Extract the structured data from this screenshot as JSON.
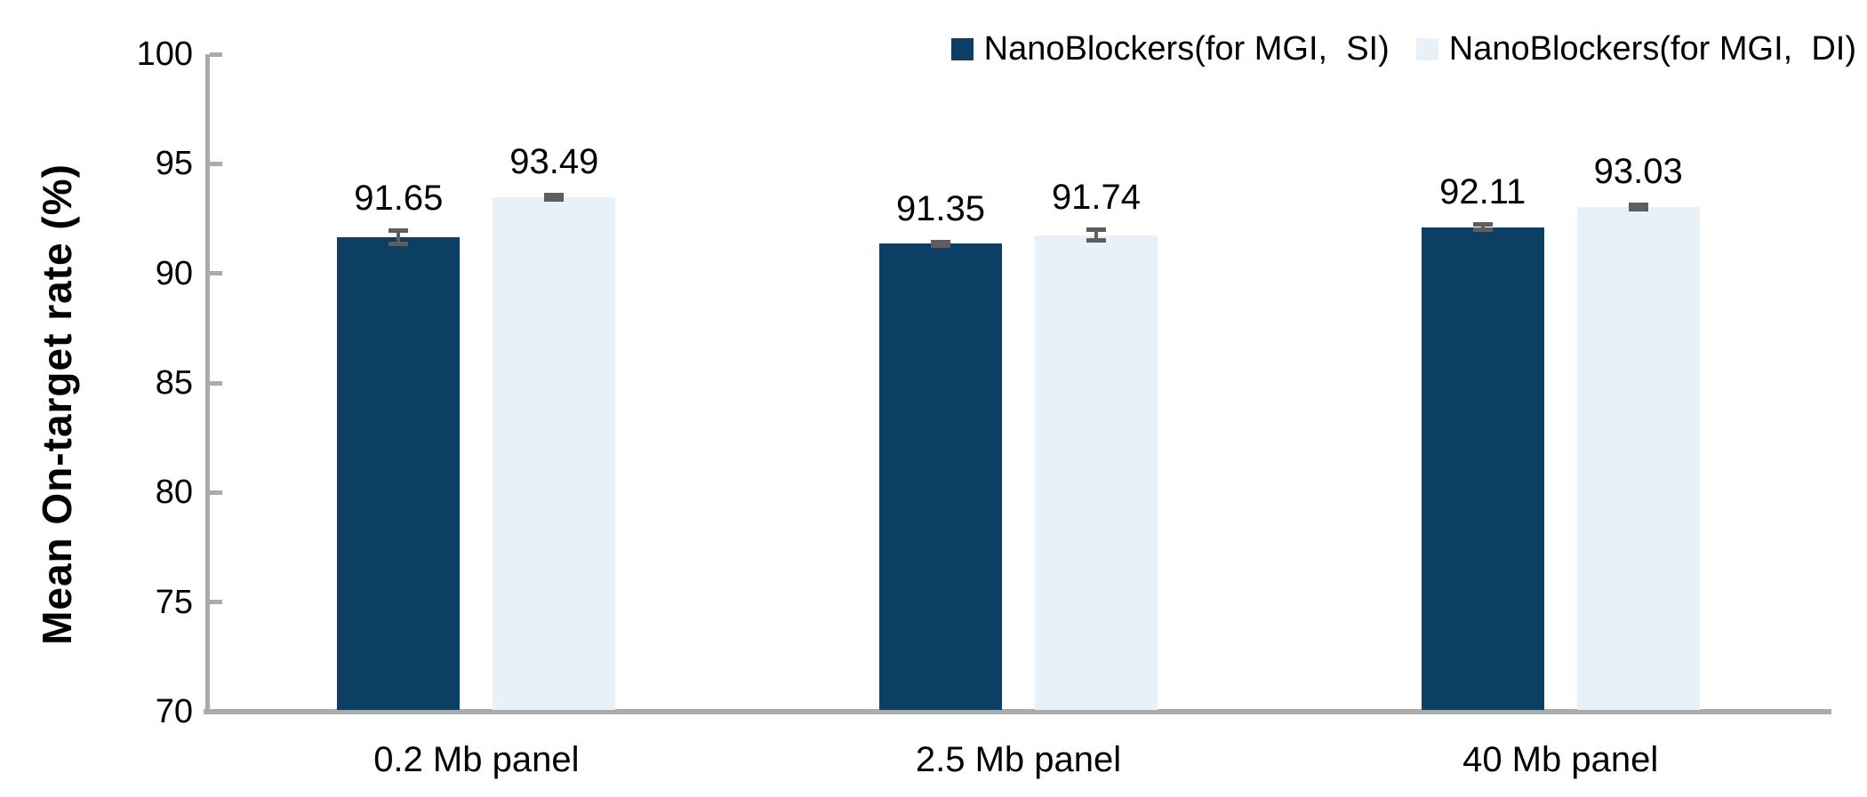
{
  "chart_data": {
    "type": "bar",
    "title": "",
    "ylabel": "Mean On-target rate (%)",
    "xlabel": "",
    "categories": [
      "0.2 Mb panel",
      "2.5 Mb panel",
      "40 Mb panel"
    ],
    "series": [
      {
        "name": "NanoBlockers(for MGI,  SI)",
        "color": "#0D3E64",
        "values": [
          91.65,
          91.35,
          92.11
        ],
        "errors": [
          0.3,
          0.08,
          0.12
        ]
      },
      {
        "name": "NanoBlockers(for MGI,  DI)",
        "color": "#E8F1F8",
        "values": [
          93.49,
          91.74,
          93.03
        ],
        "errors": [
          0.1,
          0.25,
          0.1
        ]
      }
    ],
    "value_labels": [
      [
        "91.65",
        "91.35",
        "92.11"
      ],
      [
        "93.49",
        "91.74",
        "93.03"
      ]
    ],
    "ylim": [
      70,
      100
    ],
    "yticks": [
      70,
      75,
      80,
      85,
      90,
      95,
      100
    ],
    "grid": false,
    "legend_position": "top-right",
    "axis_color": "#ABABAB",
    "error_bar_color": "#5E5E5E",
    "text_color": "#000000"
  }
}
